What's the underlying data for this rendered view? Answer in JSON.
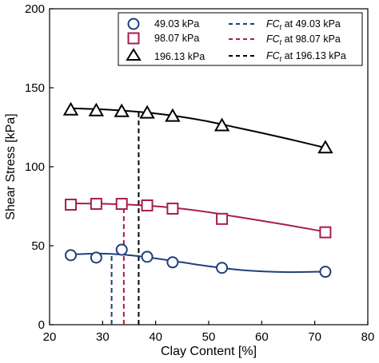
{
  "chart_data": {
    "type": "scatter",
    "xlabel": "Clay Content [%]",
    "ylabel": "Shear Stress [kPa]",
    "xlim": [
      20,
      80
    ],
    "ylim": [
      0,
      200
    ],
    "xticks": [
      20,
      30,
      40,
      50,
      60,
      70,
      80
    ],
    "yticks": [
      0,
      50,
      100,
      150,
      200
    ],
    "x_tick_labels": [
      "20",
      "30",
      "40",
      "50",
      "60",
      "70",
      "80"
    ],
    "y_tick_labels": [
      "0",
      "50",
      "100",
      "150",
      "200"
    ],
    "grid": false,
    "legend_position": "top-right",
    "series": [
      {
        "name": "49.03 kPa",
        "marker": "circle",
        "color": "#1f3f7a",
        "x": [
          24,
          28.8,
          33.6,
          38.4,
          43.2,
          52.5,
          72
        ],
        "y": [
          44,
          42.5,
          47.5,
          43,
          39.5,
          36,
          33.5
        ],
        "fit": [
          [
            24,
            44.5
          ],
          [
            30,
            45
          ],
          [
            35,
            44
          ],
          [
            40,
            42
          ],
          [
            45,
            39.5
          ],
          [
            50,
            37
          ],
          [
            55,
            35
          ],
          [
            60,
            33.8
          ],
          [
            65,
            33.3
          ],
          [
            70,
            33.5
          ],
          [
            72,
            33.7
          ]
        ],
        "fc_t": 31.7
      },
      {
        "name": "98.07 kPa",
        "marker": "square",
        "color": "#a61e4d",
        "x": [
          24,
          28.8,
          33.6,
          38.4,
          43.2,
          52.5,
          72
        ],
        "y": [
          76,
          76.5,
          76.5,
          75.5,
          73.5,
          67,
          58.5
        ],
        "fit": [
          [
            24,
            76.8
          ],
          [
            30,
            76.6
          ],
          [
            35,
            76
          ],
          [
            40,
            75
          ],
          [
            45,
            73.4
          ],
          [
            50,
            71.2
          ],
          [
            55,
            68.5
          ],
          [
            60,
            65.8
          ],
          [
            65,
            63
          ],
          [
            70,
            60
          ],
          [
            72,
            58.8
          ]
        ],
        "fc_t": 34
      },
      {
        "name": "196.13 kPa",
        "marker": "triangle",
        "color": "#000000",
        "x": [
          24,
          28.8,
          33.6,
          38.4,
          43.2,
          52.5,
          72
        ],
        "y": [
          136,
          135.5,
          135,
          134,
          132,
          126,
          112
        ],
        "fit": [
          [
            24,
            137
          ],
          [
            30,
            136.3
          ],
          [
            35,
            135.2
          ],
          [
            40,
            133.7
          ],
          [
            45,
            131.5
          ],
          [
            50,
            128.6
          ],
          [
            55,
            125
          ],
          [
            60,
            121.4
          ],
          [
            65,
            117.6
          ],
          [
            70,
            113.6
          ],
          [
            72,
            112
          ]
        ],
        "fc_t": 36.8
      }
    ],
    "legend_fc_prefix": "FC",
    "legend_fc_subscript": "t",
    "legend_fc_suffix_49": "at 49.03 kPa",
    "legend_fc_suffix_98": "at 98.07 kPa",
    "legend_fc_suffix_196": "at 196.13 kPa"
  }
}
